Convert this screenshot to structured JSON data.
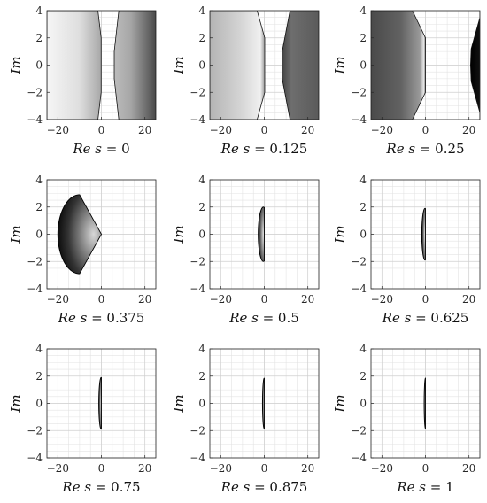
{
  "chart_data": [
    {
      "type": "area",
      "xlabel": {
        "prefix": "Re s",
        "value": "0"
      },
      "ylabel": "Im",
      "xlim": [
        -25,
        25
      ],
      "ylim": [
        -4,
        4
      ],
      "xticks": [
        -20,
        0,
        20
      ],
      "yticks": [
        -4,
        -2,
        0,
        2,
        4
      ],
      "grid": "minor",
      "gap": {
        "left_edge": [
          [
            -1.6,
            4
          ],
          [
            -0.1,
            2
          ],
          [
            -0.1,
            -2
          ],
          [
            -1.6,
            -4
          ]
        ],
        "right_edge": [
          [
            8.0,
            4
          ],
          [
            5.9,
            1
          ],
          [
            5.9,
            -1
          ],
          [
            8.0,
            -4
          ]
        ]
      }
    },
    {
      "type": "area",
      "xlabel": {
        "prefix": "Re s",
        "value": "0.125"
      },
      "ylabel": "Im",
      "xlim": [
        -25,
        25
      ],
      "ylim": [
        -4,
        4
      ],
      "xticks": [
        -20,
        0,
        20
      ],
      "yticks": [
        -4,
        -2,
        0,
        2,
        4
      ],
      "grid": "minor",
      "gap": {
        "left_edge": [
          [
            -3.3,
            4
          ],
          [
            0.2,
            2
          ],
          [
            0.2,
            -2
          ],
          [
            -3.3,
            -4
          ]
        ],
        "right_edge": [
          [
            11.8,
            4
          ],
          [
            8.2,
            1
          ],
          [
            8.2,
            -1
          ],
          [
            11.8,
            -4
          ]
        ]
      }
    },
    {
      "type": "area",
      "xlabel": {
        "prefix": "Re s",
        "value": "0.25"
      },
      "ylabel": "Im",
      "xlim": [
        -25,
        25
      ],
      "ylim": [
        -4,
        4
      ],
      "xticks": [
        -20,
        0,
        20
      ],
      "yticks": [
        -4,
        -2,
        0,
        2,
        4
      ],
      "grid": "minor",
      "gap": {
        "left_edge": [
          [
            -6.0,
            4
          ],
          [
            0.0,
            2
          ],
          [
            0.0,
            -2
          ],
          [
            -6.0,
            -4
          ]
        ],
        "right_edge": [
          [
            25,
            3.5
          ],
          [
            21,
            1.2
          ],
          [
            20.7,
            0
          ],
          [
            21,
            -1.2
          ],
          [
            25,
            -3.5
          ]
        ]
      }
    },
    {
      "type": "area",
      "xlabel": {
        "prefix": "Re s",
        "value": "0.375"
      },
      "ylabel": "Im",
      "xlim": [
        -25,
        25
      ],
      "ylim": [
        -4,
        4
      ],
      "xticks": [
        -20,
        0,
        20
      ],
      "yticks": [
        -4,
        -2,
        0,
        2,
        4
      ],
      "grid": "minor",
      "region": {
        "center": [
          -10,
          0
        ],
        "radius": [
          10,
          2.9
        ],
        "cut_right_at": 0
      }
    },
    {
      "type": "area",
      "xlabel": {
        "prefix": "Re s",
        "value": "0.5"
      },
      "ylabel": "Im",
      "xlim": [
        -25,
        25
      ],
      "ylim": [
        -4,
        4
      ],
      "xticks": [
        -20,
        0,
        20
      ],
      "yticks": [
        -4,
        -2,
        0,
        2,
        4
      ],
      "grid": "minor",
      "region": {
        "center": [
          -0.4,
          0
        ],
        "radius": [
          2.4,
          2.0
        ],
        "cut_right_at": 0
      }
    },
    {
      "type": "area",
      "xlabel": {
        "prefix": "Re s",
        "value": "0.625"
      },
      "ylabel": "Im",
      "xlim": [
        -25,
        25
      ],
      "ylim": [
        -4,
        4
      ],
      "xticks": [
        -20,
        0,
        20
      ],
      "yticks": [
        -4,
        -2,
        0,
        2,
        4
      ],
      "grid": "minor",
      "region": {
        "center": [
          -0.2,
          0
        ],
        "radius": [
          1.5,
          1.9
        ],
        "cut_right_at": 0
      }
    },
    {
      "type": "area",
      "xlabel": {
        "prefix": "Re s",
        "value": "0.75"
      },
      "ylabel": "Im",
      "xlim": [
        -25,
        25
      ],
      "ylim": [
        -4,
        4
      ],
      "xticks": [
        -20,
        0,
        20
      ],
      "yticks": [
        -4,
        -2,
        0,
        2,
        4
      ],
      "grid": "minor",
      "region": {
        "center": [
          -0.1,
          0
        ],
        "radius": [
          1.1,
          1.9
        ],
        "cut_right_at": 0
      }
    },
    {
      "type": "area",
      "xlabel": {
        "prefix": "Re s",
        "value": "0.875"
      },
      "ylabel": "Im",
      "xlim": [
        -25,
        25
      ],
      "ylim": [
        -4,
        4
      ],
      "xticks": [
        -20,
        0,
        20
      ],
      "yticks": [
        -4,
        -2,
        0,
        2,
        4
      ],
      "grid": "minor",
      "region": {
        "center": [
          -0.05,
          0
        ],
        "radius": [
          0.8,
          1.85
        ],
        "cut_right_at": 0
      }
    },
    {
      "type": "area",
      "xlabel": {
        "prefix": "Re s",
        "value": "1"
      },
      "ylabel": "Im",
      "xlim": [
        -25,
        25
      ],
      "ylim": [
        -4,
        4
      ],
      "xticks": [
        -20,
        0,
        20
      ],
      "yticks": [
        -4,
        -2,
        0,
        2,
        4
      ],
      "grid": "minor",
      "region": {
        "center": [
          0.0,
          0
        ],
        "radius": [
          0.6,
          1.85
        ],
        "cut_right_at": 0
      }
    }
  ]
}
